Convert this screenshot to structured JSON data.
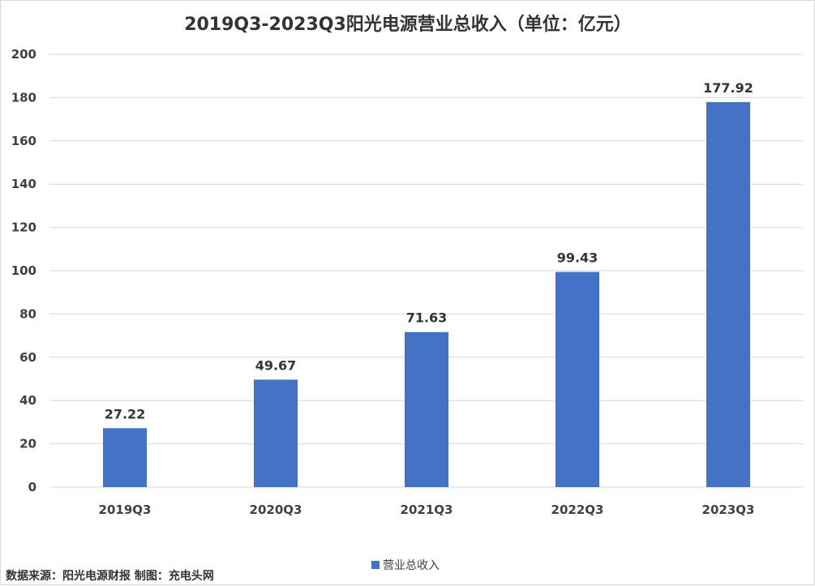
{
  "chart_data": {
    "type": "bar",
    "title": "2019Q3-2023Q3阳光电源营业总收入（单位：亿元）",
    "categories": [
      "2019Q3",
      "2020Q3",
      "2021Q3",
      "2022Q3",
      "2023Q3"
    ],
    "series": [
      {
        "name": "营业总收入",
        "values": [
          27.22,
          49.67,
          71.63,
          99.43,
          177.92
        ],
        "data_labels": [
          "27.22",
          "49.67",
          "71.63",
          "99.43",
          "177.92"
        ],
        "color": "#4472c4"
      }
    ],
    "ylim": [
      0,
      200
    ],
    "yticks": [
      0,
      20,
      40,
      60,
      80,
      100,
      120,
      140,
      160,
      180,
      200
    ],
    "xlabel": "",
    "ylabel": "",
    "grid": true,
    "legend_position": "bottom"
  },
  "source_note": "数据来源：阳光电源财报  制图：充电头网",
  "colors": {
    "bar": "#4472c4",
    "grid": "#d9d9d9",
    "text": "#404040"
  }
}
